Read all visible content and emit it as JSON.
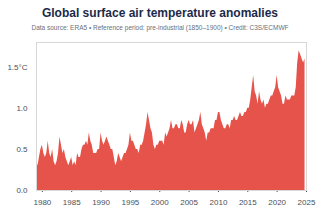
{
  "chart_data": {
    "type": "area",
    "title": "Global surface air temperature anomalies",
    "subtitle": "Data source: ERA5 • Reference period: pre-industrial (1850–1900) • Credit: C3S/ECMWF",
    "color": "#e5534b",
    "grid": false,
    "xlim": [
      1979,
      2025
    ],
    "xticks": [
      1980,
      1985,
      1990,
      1995,
      2000,
      2005,
      2010,
      2015,
      2020,
      2025
    ],
    "ylim": [
      0,
      1.8
    ],
    "yticks": [
      {
        "value": 0,
        "label": "0.0"
      },
      0.5,
      {
        "value": 1,
        "label": "1.0"
      },
      {
        "value": 1.5,
        "label": "1.5°C"
      }
    ],
    "x": [
      1979,
      1979.25,
      1979.5,
      1979.75,
      1980,
      1980.25,
      1980.5,
      1980.75,
      1981,
      1981.25,
      1981.5,
      1981.75,
      1982,
      1982.25,
      1982.5,
      1982.75,
      1983,
      1983.25,
      1983.5,
      1983.75,
      1984,
      1984.25,
      1984.5,
      1984.75,
      1985,
      1985.25,
      1985.5,
      1985.75,
      1986,
      1986.25,
      1986.5,
      1986.75,
      1987,
      1987.25,
      1987.5,
      1987.75,
      1988,
      1988.25,
      1988.5,
      1988.75,
      1989,
      1989.25,
      1989.5,
      1989.75,
      1990,
      1990.25,
      1990.5,
      1990.75,
      1991,
      1991.25,
      1991.5,
      1991.75,
      1992,
      1992.25,
      1992.5,
      1992.75,
      1993,
      1993.25,
      1993.5,
      1993.75,
      1994,
      1994.25,
      1994.5,
      1994.75,
      1995,
      1995.25,
      1995.5,
      1995.75,
      1996,
      1996.25,
      1996.5,
      1996.75,
      1997,
      1997.25,
      1997.5,
      1997.75,
      1998,
      1998.25,
      1998.5,
      1998.75,
      1999,
      1999.25,
      1999.5,
      1999.75,
      2000,
      2000.25,
      2000.5,
      2000.75,
      2001,
      2001.25,
      2001.5,
      2001.75,
      2002,
      2002.25,
      2002.5,
      2002.75,
      2003,
      2003.25,
      2003.5,
      2003.75,
      2004,
      2004.25,
      2004.5,
      2004.75,
      2005,
      2005.25,
      2005.5,
      2005.75,
      2006,
      2006.25,
      2006.5,
      2006.75,
      2007,
      2007.25,
      2007.5,
      2007.75,
      2008,
      2008.25,
      2008.5,
      2008.75,
      2009,
      2009.25,
      2009.5,
      2009.75,
      2010,
      2010.25,
      2010.5,
      2010.75,
      2011,
      2011.25,
      2011.5,
      2011.75,
      2012,
      2012.25,
      2012.5,
      2012.75,
      2013,
      2013.25,
      2013.5,
      2013.75,
      2014,
      2014.25,
      2014.5,
      2014.75,
      2015,
      2015.25,
      2015.5,
      2015.75,
      2016,
      2016.25,
      2016.5,
      2016.75,
      2017,
      2017.25,
      2017.5,
      2017.75,
      2018,
      2018.25,
      2018.5,
      2018.75,
      2019,
      2019.25,
      2019.5,
      2019.75,
      2020,
      2020.25,
      2020.5,
      2020.75,
      2021,
      2021.25,
      2021.5,
      2021.75,
      2022,
      2022.25,
      2022.5,
      2022.75,
      2023,
      2023.25,
      2023.5,
      2023.75,
      2024,
      2024.25,
      2024.5,
      2024.75
    ],
    "values": [
      0.35,
      0.3,
      0.4,
      0.5,
      0.55,
      0.45,
      0.4,
      0.45,
      0.6,
      0.45,
      0.4,
      0.5,
      0.35,
      0.3,
      0.35,
      0.45,
      0.65,
      0.55,
      0.45,
      0.5,
      0.4,
      0.35,
      0.3,
      0.35,
      0.4,
      0.3,
      0.35,
      0.3,
      0.45,
      0.4,
      0.4,
      0.5,
      0.55,
      0.55,
      0.6,
      0.55,
      0.7,
      0.6,
      0.55,
      0.45,
      0.45,
      0.45,
      0.5,
      0.5,
      0.7,
      0.6,
      0.55,
      0.6,
      0.65,
      0.6,
      0.55,
      0.5,
      0.5,
      0.4,
      0.3,
      0.35,
      0.45,
      0.4,
      0.35,
      0.4,
      0.45,
      0.45,
      0.5,
      0.55,
      0.7,
      0.6,
      0.6,
      0.55,
      0.5,
      0.5,
      0.45,
      0.55,
      0.55,
      0.6,
      0.7,
      0.8,
      0.95,
      0.85,
      0.75,
      0.7,
      0.55,
      0.5,
      0.55,
      0.55,
      0.6,
      0.6,
      0.6,
      0.55,
      0.7,
      0.65,
      0.7,
      0.75,
      0.85,
      0.75,
      0.75,
      0.8,
      0.8,
      0.75,
      0.75,
      0.85,
      0.8,
      0.7,
      0.7,
      0.8,
      0.85,
      0.8,
      0.8,
      0.85,
      0.7,
      0.75,
      0.8,
      0.85,
      0.95,
      0.8,
      0.75,
      0.7,
      0.6,
      0.7,
      0.7,
      0.75,
      0.75,
      0.75,
      0.85,
      0.85,
      0.95,
      0.95,
      0.85,
      0.8,
      0.75,
      0.75,
      0.8,
      0.8,
      0.75,
      0.85,
      0.85,
      0.9,
      0.85,
      0.85,
      0.9,
      0.95,
      0.9,
      0.9,
      0.95,
      0.95,
      1.0,
      1.0,
      1.1,
      1.25,
      1.4,
      1.2,
      1.15,
      1.05,
      1.2,
      1.1,
      1.05,
      1.1,
      1.0,
      1.05,
      1.05,
      1.1,
      1.15,
      1.15,
      1.2,
      1.25,
      1.4,
      1.25,
      1.2,
      1.15,
      1.05,
      1.05,
      1.15,
      1.1,
      1.1,
      1.1,
      1.15,
      1.15,
      1.15,
      1.25,
      1.55,
      1.7,
      1.65,
      1.6,
      1.55,
      1.6
    ]
  }
}
